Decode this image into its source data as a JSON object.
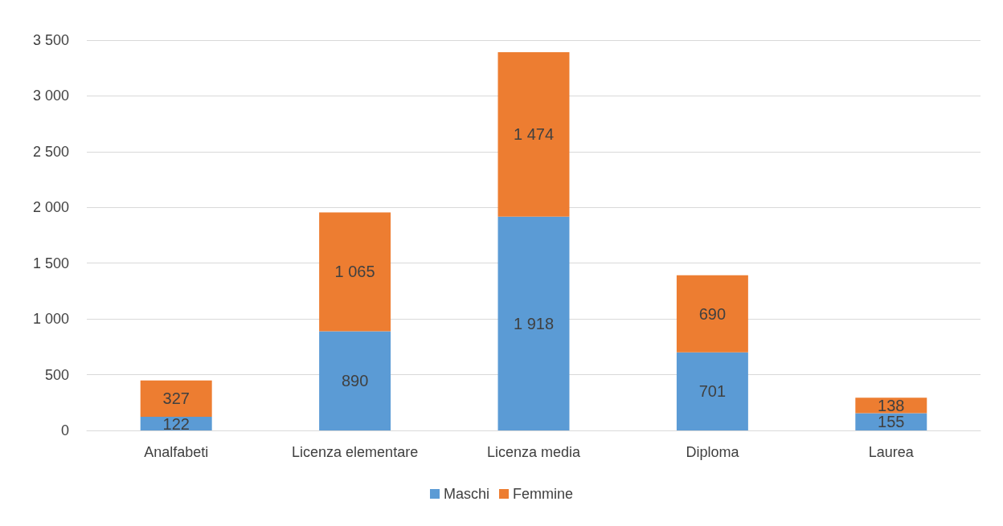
{
  "chart_data": {
    "type": "bar",
    "stacked": true,
    "categories": [
      "Analfabeti",
      "Licenza elementare",
      "Licenza media",
      "Diploma",
      "Laurea"
    ],
    "series": [
      {
        "name": "Maschi",
        "color": "#5b9bd5",
        "values": [
          122,
          890,
          1918,
          701,
          155
        ],
        "value_labels": [
          "122",
          "890",
          "1 918",
          "701",
          "155"
        ]
      },
      {
        "name": "Femmine",
        "color": "#ed7d31",
        "values": [
          327,
          1065,
          1474,
          690,
          138
        ],
        "value_labels": [
          "327",
          "1 065",
          "1 474",
          "690",
          "138"
        ]
      }
    ],
    "ylim": [
      0,
      3500
    ],
    "yticks": [
      {
        "value": 0,
        "label": "0"
      },
      {
        "value": 500,
        "label": "500"
      },
      {
        "value": 1000,
        "label": "1 000"
      },
      {
        "value": 1500,
        "label": "1 500"
      },
      {
        "value": 2000,
        "label": "2 000"
      },
      {
        "value": 2500,
        "label": "2 500"
      },
      {
        "value": 3000,
        "label": "3 000"
      },
      {
        "value": 3500,
        "label": "3 500"
      }
    ],
    "grid": "y",
    "legend": "bottom"
  }
}
